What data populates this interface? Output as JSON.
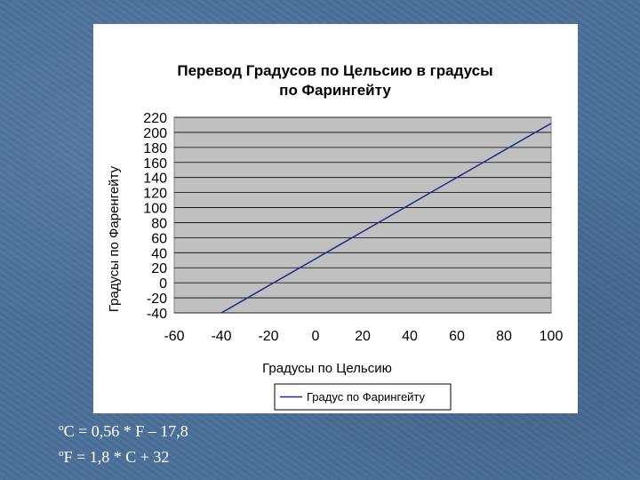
{
  "chart_data": {
    "type": "line",
    "title_lines": [
      "Перевод Градусов по Цельсию в градусы",
      "по Фарингейту"
    ],
    "xlabel": "Градусы по Цельсию",
    "ylabel": "Градусы по Фаренгейту",
    "xlim": [
      -60,
      100
    ],
    "ylim": [
      -40,
      220
    ],
    "x_ticks": [
      "-60",
      "-40",
      "-20",
      "0",
      "20",
      "40",
      "60",
      "80",
      "100"
    ],
    "y_ticks": [
      "220",
      "200",
      "180",
      "160",
      "140",
      "120",
      "100",
      "80",
      "60",
      "40",
      "20",
      "0",
      "-20",
      "-40"
    ],
    "grid": true,
    "legend_position": "bottom-right",
    "plot_background": "#c0c0c0",
    "series": [
      {
        "name": "Градус по Фарингейту",
        "color": "#1f2a8a",
        "x": [
          -40,
          -30,
          -20,
          -10,
          0,
          10,
          20,
          30,
          40,
          50,
          60,
          70,
          80,
          90,
          100
        ],
        "y": [
          -40,
          -22,
          -4,
          14,
          32,
          50,
          68,
          86,
          104,
          122,
          140,
          158,
          176,
          194,
          212
        ]
      }
    ]
  },
  "formulas": {
    "celsius": "ºC = 0,56 * F – 17,8",
    "fahrenheit": "ºF = 1,8 * C + 32"
  }
}
